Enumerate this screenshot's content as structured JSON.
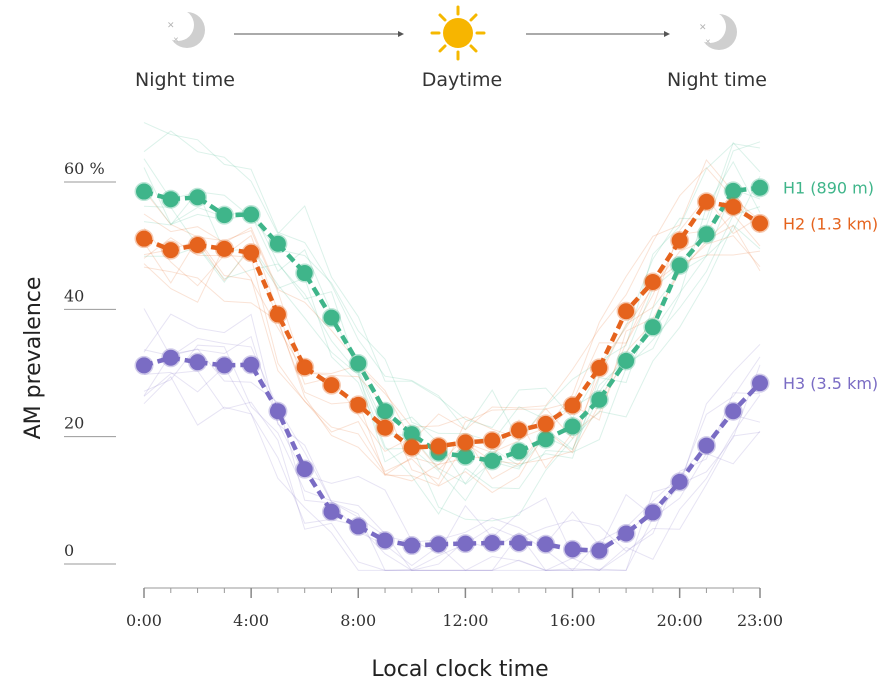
{
  "header": {
    "left_label": "Night time",
    "center_label": "Daytime",
    "right_label": "Night time",
    "left_icon": "moon-stars-icon",
    "center_icon": "sun-icon",
    "right_icon": "moon-stars-icon"
  },
  "chart_data": {
    "type": "line",
    "xlabel": "Local clock time",
    "ylabel": "AM prevalence",
    "x": [
      0,
      1,
      2,
      3,
      4,
      5,
      6,
      7,
      8,
      9,
      10,
      11,
      12,
      13,
      14,
      15,
      16,
      17,
      18,
      19,
      20,
      21,
      22,
      23
    ],
    "xlim": [
      0,
      23
    ],
    "ylim": [
      0,
      60
    ],
    "x_ticks": [
      0,
      4,
      8,
      12,
      16,
      20,
      23
    ],
    "x_tick_labels": [
      "0:00",
      "4:00",
      "8:00",
      "12:00",
      "16:00",
      "20:00",
      "23:00"
    ],
    "y_ticks": [
      0,
      20,
      40,
      60
    ],
    "y_tick_labels": [
      "0",
      "20",
      "40",
      "60 %"
    ],
    "grid": false,
    "series": [
      {
        "name": "H1 (890 m)",
        "color": "#3fb58a",
        "values": [
          58.5,
          57.3,
          57.6,
          54.8,
          54.9,
          50.3,
          45.7,
          38.7,
          31.5,
          24,
          20.4,
          17.5,
          16.9,
          16.2,
          17.7,
          19.6,
          21.6,
          25.8,
          31.9,
          37.2,
          46.9,
          51.8,
          58.6,
          59.1
        ]
      },
      {
        "name": "H2 (1.3 km)",
        "color": "#e5631d",
        "values": [
          51.1,
          49.3,
          50.1,
          49.5,
          48.9,
          39.2,
          30.9,
          28.1,
          25,
          21.4,
          18.3,
          18.5,
          19.1,
          19.4,
          21,
          22,
          24.9,
          30.8,
          39.7,
          44.3,
          50.8,
          56.9,
          56.1,
          53.5
        ]
      },
      {
        "name": "H3 (3.5 km)",
        "color": "#7a6cc4",
        "values": [
          31.2,
          32.4,
          31.7,
          31.2,
          31.3,
          24,
          14.9,
          8.2,
          5.9,
          3.7,
          2.9,
          3.1,
          3.2,
          3.3,
          3.3,
          3.1,
          2.3,
          2.1,
          4.8,
          8.1,
          12.9,
          18.6,
          24,
          28.4
        ]
      }
    ]
  }
}
